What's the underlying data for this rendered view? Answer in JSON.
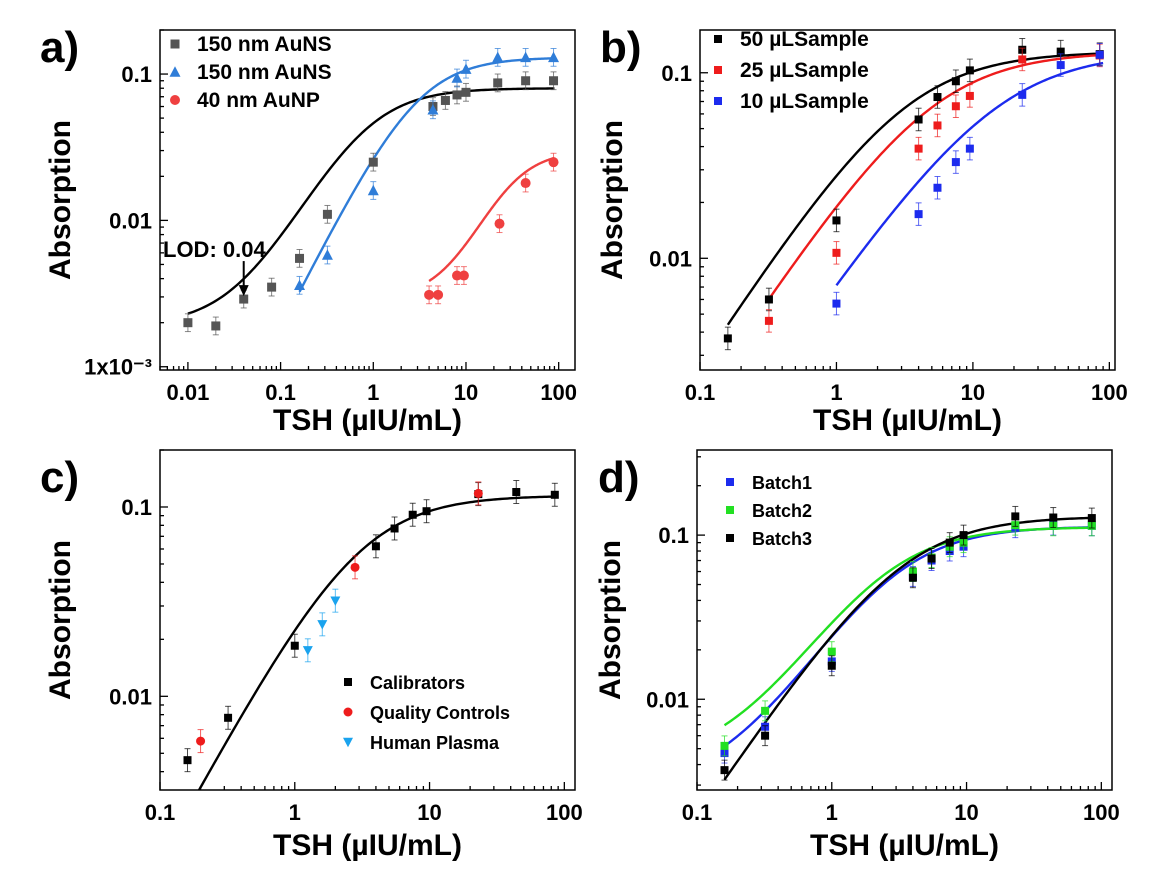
{
  "chart_data": [
    {
      "panel": "a)",
      "type": "scatter",
      "xscale": "log",
      "yscale": "log",
      "xlim": [
        0.005,
        150
      ],
      "ylim": [
        0.00095,
        0.2
      ],
      "xlabel": "TSH (µIU/mL)",
      "ylabel": "Absorption",
      "xticks": [
        0.01,
        0.1,
        1,
        10,
        100
      ],
      "xtick_labels": [
        "0.01",
        "0.1",
        "1",
        "10",
        "100"
      ],
      "yticks": [
        0.001,
        0.01,
        0.1
      ],
      "ytick_labels": [
        "1x10⁻³",
        "0.01",
        "0.1"
      ],
      "legend_position": "top-left",
      "annotation": {
        "text": "LOD: 0.04",
        "x": 0.04,
        "y": 0.0029
      },
      "series": [
        {
          "name": "150 nm AuNS",
          "color": "#555555",
          "marker": "square",
          "line_color": "#000000",
          "x": [
            0.01,
            0.02,
            0.04,
            0.08,
            0.16,
            0.32,
            1,
            4.4,
            6,
            8,
            10,
            22,
            44,
            88
          ],
          "y": [
            0.002,
            0.0019,
            0.0029,
            0.0035,
            0.0055,
            0.011,
            0.025,
            0.06,
            0.066,
            0.072,
            0.075,
            0.087,
            0.09,
            0.09
          ],
          "fit": {
            "bottom": 0.0019,
            "top": 0.08,
            "ec50": 0.8,
            "hill": 1.2,
            "xmin": 0.01,
            "xmax": 90
          }
        },
        {
          "name": "150 nm AuNS",
          "color": "#2f7dd8",
          "marker": "triangle",
          "line_color": "#2f7dd8",
          "x": [
            0.16,
            0.32,
            1,
            4.4,
            8,
            10,
            22,
            44,
            88
          ],
          "y": [
            0.0036,
            0.0058,
            0.016,
            0.057,
            0.094,
            0.108,
            0.13,
            0.13,
            0.13
          ],
          "fit": {
            "bottom": 0.0,
            "top": 0.13,
            "ec50": 3.0,
            "hill": 1.25,
            "xmin": 0.16,
            "xmax": 90
          }
        },
        {
          "name": "40 nm AuNP",
          "color": "#ef4040",
          "marker": "circle",
          "line_color": "#ef4040",
          "x": [
            4,
            5,
            8,
            9.5,
            23,
            44,
            88
          ],
          "y": [
            0.0031,
            0.0031,
            0.0042,
            0.0042,
            0.0095,
            0.018,
            0.025
          ],
          "fit": {
            "bottom": 0.0029,
            "top": 0.03,
            "ec50": 28,
            "hill": 1.7,
            "xmin": 4,
            "xmax": 90
          }
        }
      ]
    },
    {
      "panel": "b)",
      "type": "scatter",
      "xscale": "log",
      "yscale": "log",
      "xlim": [
        0.1,
        110
      ],
      "ylim": [
        0.0025,
        0.17
      ],
      "xlabel": "TSH (µIU/mL)",
      "ylabel": "Absorption",
      "xticks": [
        0.1,
        1,
        10,
        100
      ],
      "xtick_labels": [
        "0.1",
        "1",
        "10",
        "100"
      ],
      "yticks": [
        0.01,
        0.1
      ],
      "ytick_labels": [
        "0.01",
        "0.1"
      ],
      "legend_position": "top-left",
      "series": [
        {
          "name": "50 µLSample",
          "color": "#000000",
          "marker": "square",
          "line_color": "#000000",
          "x": [
            0.16,
            0.32,
            1,
            4,
            5.5,
            7.5,
            9.5,
            23,
            44,
            85
          ],
          "y": [
            0.0037,
            0.006,
            0.016,
            0.056,
            0.074,
            0.09,
            0.103,
            0.133,
            0.13,
            0.126
          ],
          "fit": {
            "bottom": 0.0,
            "top": 0.13,
            "ec50": 3.2,
            "hill": 1.12,
            "xmin": 0.16,
            "xmax": 90
          }
        },
        {
          "name": "25 µLSample",
          "color": "#ee1c1c",
          "marker": "square",
          "line_color": "#ee1c1c",
          "x": [
            0.32,
            1,
            4,
            5.5,
            7.5,
            9.5,
            23,
            85
          ],
          "y": [
            0.0046,
            0.0107,
            0.039,
            0.052,
            0.066,
            0.075,
            0.118,
            0.124
          ],
          "fit": {
            "bottom": 0.0,
            "top": 0.13,
            "ec50": 5.0,
            "hill": 1.1,
            "xmin": 0.32,
            "xmax": 90
          }
        },
        {
          "name": "10 µLSample",
          "color": "#1c2bee",
          "marker": "square",
          "line_color": "#1c2bee",
          "x": [
            1,
            4,
            5.5,
            7.5,
            9.5,
            23,
            44,
            85
          ],
          "y": [
            0.0057,
            0.0173,
            0.024,
            0.033,
            0.039,
            0.076,
            0.11,
            0.125
          ],
          "fit": {
            "bottom": 0.0,
            "top": 0.13,
            "ec50": 15,
            "hill": 1.05,
            "xmin": 1,
            "xmax": 90
          }
        }
      ]
    },
    {
      "panel": "c)",
      "type": "scatter",
      "xscale": "log",
      "yscale": "log",
      "xlim": [
        0.1,
        120
      ],
      "ylim": [
        0.0032,
        0.2
      ],
      "xlabel": "TSH (µIU/mL)",
      "ylabel": "Absorption",
      "xticks": [
        0.1,
        1,
        10,
        100
      ],
      "xtick_labels": [
        "0.1",
        "1",
        "10",
        "100"
      ],
      "yticks": [
        0.01,
        0.1
      ],
      "ytick_labels": [
        "0.01",
        "0.1"
      ],
      "legend_position": "bottom-right",
      "series": [
        {
          "name": "Calibrators",
          "color": "#000000",
          "marker": "square",
          "line_color": "#000000",
          "x": [
            0.16,
            0.32,
            1,
            4,
            5.5,
            7.5,
            9.5,
            23,
            44,
            85
          ],
          "y": [
            0.0046,
            0.0077,
            0.0185,
            0.062,
            0.077,
            0.091,
            0.095,
            0.117,
            0.12,
            0.116
          ],
          "fit": {
            "bottom": 0.0,
            "top": 0.115,
            "ec50": 3.0,
            "hill": 1.3,
            "xmin": 0.16,
            "xmax": 90
          }
        },
        {
          "name": "Quality Controls",
          "color": "#ee1c1c",
          "marker": "circle",
          "line_color": null,
          "x": [
            0.2,
            2.8,
            23
          ],
          "y": [
            0.0058,
            0.048,
            0.118
          ]
        },
        {
          "name": "Human Plasma",
          "color": "#1aa3ee",
          "marker": "triangle-down",
          "line_color": null,
          "x": [
            1.25,
            1.6,
            2.0
          ],
          "y": [
            0.0175,
            0.024,
            0.032
          ]
        }
      ]
    },
    {
      "panel": "d)",
      "type": "scatter",
      "xscale": "log",
      "yscale": "log",
      "xlim": [
        0.1,
        120
      ],
      "ylim": [
        0.0028,
        0.33
      ],
      "xlabel": "TSH (µIU/mL)",
      "ylabel": "Absorption",
      "xticks": [
        0.1,
        1,
        10,
        100
      ],
      "xtick_labels": [
        "0.1",
        "1",
        "10",
        "100"
      ],
      "yticks": [
        0.01,
        0.1
      ],
      "ytick_labels": [
        "0.01",
        "0.1"
      ],
      "legend_position": "top-left",
      "series": [
        {
          "name": "Batch1",
          "color": "#1c2bee",
          "marker": "square",
          "line_color": "#1c2bee",
          "x": [
            0.16,
            0.32,
            1,
            4,
            5.5,
            7.5,
            9.5,
            23,
            44,
            85
          ],
          "y": [
            0.0047,
            0.0068,
            0.017,
            0.056,
            0.07,
            0.08,
            0.085,
            0.111,
            0.115,
            0.114
          ],
          "fit": {
            "bottom": 0.0028,
            "top": 0.113,
            "ec50": 3.0,
            "hill": 1.3,
            "xmin": 0.16,
            "xmax": 90
          }
        },
        {
          "name": "Batch2",
          "color": "#22e022",
          "marker": "square",
          "line_color": "#22e022",
          "x": [
            0.16,
            0.32,
            1,
            4,
            5.5,
            7.5,
            9.5,
            23,
            44,
            85
          ],
          "y": [
            0.0052,
            0.0085,
            0.0195,
            0.06,
            0.073,
            0.085,
            0.09,
            0.115,
            0.114,
            0.114
          ],
          "fit": {
            "bottom": 0.004,
            "top": 0.112,
            "ec50": 2.5,
            "hill": 1.3,
            "xmin": 0.16,
            "xmax": 90
          }
        },
        {
          "name": "Batch3",
          "color": "#000000",
          "marker": "square",
          "line_color": "#000000",
          "x": [
            0.16,
            0.32,
            1,
            4,
            5.5,
            7.5,
            9.5,
            23,
            44,
            85
          ],
          "y": [
            0.0037,
            0.006,
            0.016,
            0.055,
            0.072,
            0.09,
            0.1,
            0.13,
            0.128,
            0.127
          ],
          "fit": {
            "bottom": 0.0,
            "top": 0.13,
            "ec50": 3.4,
            "hill": 1.2,
            "xmin": 0.16,
            "xmax": 90
          }
        }
      ]
    }
  ]
}
